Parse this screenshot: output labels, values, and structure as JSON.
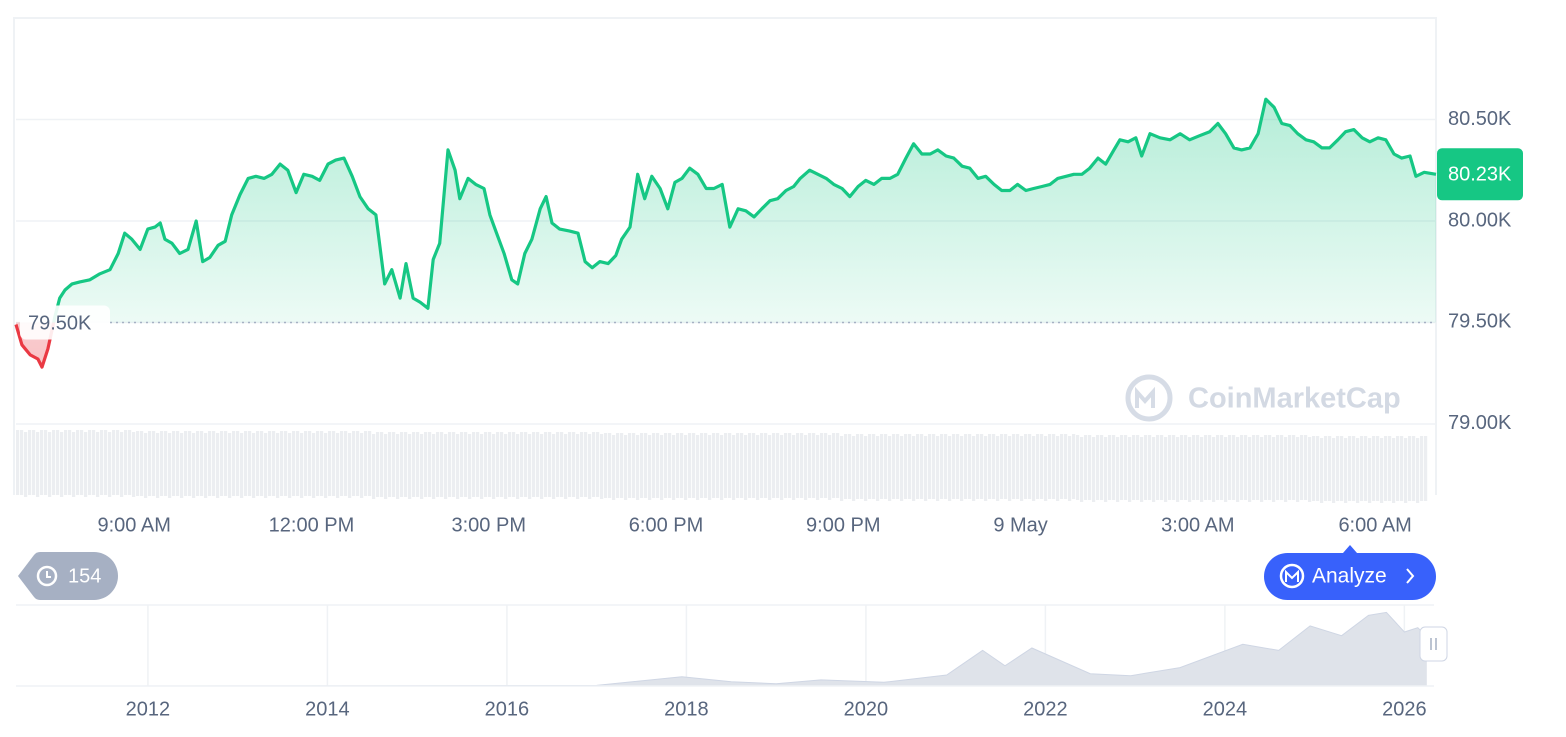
{
  "chart_data": [
    {
      "type": "line",
      "color": "#16c784",
      "down_color": "#ea3943",
      "grid": true,
      "baseline": {
        "value": 79500,
        "label": "79.50K"
      },
      "current_price": {
        "value": 80230,
        "label": "80.23K"
      },
      "xlim": [
        7,
        31.03
      ],
      "xticks": [
        {
          "value": 9,
          "label": "9:00 AM"
        },
        {
          "value": 12,
          "label": "12:00 PM"
        },
        {
          "value": 15,
          "label": "3:00 PM"
        },
        {
          "value": 18,
          "label": "6:00 PM"
        },
        {
          "value": 21,
          "label": "9:00 PM"
        },
        {
          "value": 24,
          "label": "9 May"
        },
        {
          "value": 27,
          "label": "3:00 AM"
        },
        {
          "value": 30,
          "label": "6:00 AM"
        }
      ],
      "ylim": [
        78650,
        81000
      ],
      "yticks": [
        {
          "value": 79000,
          "label": "79.00K"
        },
        {
          "value": 79500,
          "label": "79.50K"
        },
        {
          "value": 80000,
          "label": "80.00K"
        },
        {
          "value": 80500,
          "label": "80.50K"
        }
      ],
      "x": [
        7.0,
        7.1,
        7.24,
        7.37,
        7.44,
        7.54,
        7.66,
        7.74,
        7.83,
        7.95,
        8.08,
        8.25,
        8.42,
        8.59,
        8.73,
        8.84,
        8.96,
        9.1,
        9.23,
        9.35,
        9.44,
        9.52,
        9.64,
        9.77,
        9.91,
        10.05,
        10.16,
        10.28,
        10.42,
        10.54,
        10.65,
        10.79,
        10.93,
        11.06,
        11.2,
        11.33,
        11.47,
        11.6,
        11.74,
        11.87,
        12.01,
        12.14,
        12.28,
        12.41,
        12.55,
        12.69,
        12.82,
        12.96,
        13.09,
        13.24,
        13.36,
        13.5,
        13.6,
        13.72,
        13.84,
        13.97,
        14.06,
        14.17,
        14.31,
        14.43,
        14.51,
        14.65,
        14.78,
        14.92,
        15.02,
        15.12,
        15.26,
        15.39,
        15.49,
        15.61,
        15.73,
        15.87,
        15.97,
        16.07,
        16.2,
        16.37,
        16.51,
        16.63,
        16.75,
        16.88,
        17.02,
        17.15,
        17.25,
        17.39,
        17.52,
        17.64,
        17.76,
        17.9,
        18.03,
        18.15,
        18.27,
        18.4,
        18.54,
        18.68,
        18.81,
        18.95,
        19.08,
        19.22,
        19.35,
        19.49,
        19.62,
        19.76,
        19.89,
        20.03,
        20.16,
        20.27,
        20.43,
        20.57,
        20.71,
        20.84,
        20.98,
        21.11,
        21.25,
        21.38,
        21.52,
        21.65,
        21.79,
        21.92,
        22.06,
        22.19,
        22.33,
        22.47,
        22.6,
        22.74,
        22.87,
        23.01,
        23.14,
        23.28,
        23.41,
        23.55,
        23.68,
        23.82,
        23.95,
        24.09,
        24.22,
        24.36,
        24.5,
        24.63,
        24.77,
        24.9,
        25.04,
        25.17,
        25.31,
        25.44,
        25.58,
        25.68,
        25.82,
        25.95,
        26.05,
        26.19,
        26.36,
        26.53,
        26.7,
        26.86,
        27.03,
        27.2,
        27.34,
        27.47,
        27.61,
        27.74,
        27.88,
        28.02,
        28.15,
        28.29,
        28.42,
        28.56,
        28.69,
        28.83,
        28.96,
        29.1,
        29.23,
        29.37,
        29.5,
        29.64,
        29.78,
        29.91,
        30.05,
        30.18,
        30.32,
        30.45,
        30.59,
        30.69,
        30.83,
        31.03
      ],
      "values": [
        79490,
        79390,
        79340,
        79320,
        79280,
        79370,
        79530,
        79620,
        79660,
        79690,
        79700,
        79710,
        79740,
        79760,
        79840,
        79940,
        79910,
        79860,
        79960,
        79970,
        79990,
        79910,
        79890,
        79840,
        79860,
        80000,
        79800,
        79820,
        79880,
        79900,
        80030,
        80130,
        80210,
        80220,
        80210,
        80230,
        80280,
        80250,
        80140,
        80230,
        80220,
        80200,
        80280,
        80300,
        80310,
        80220,
        80120,
        80060,
        80030,
        79690,
        79760,
        79620,
        79790,
        79620,
        79600,
        79570,
        79810,
        79890,
        80350,
        80250,
        80110,
        80210,
        80180,
        80160,
        80030,
        79950,
        79840,
        79710,
        79690,
        79840,
        79910,
        80060,
        80120,
        79990,
        79960,
        79950,
        79940,
        79800,
        79770,
        79800,
        79790,
        79830,
        79910,
        79970,
        80230,
        80110,
        80220,
        80160,
        80060,
        80190,
        80210,
        80260,
        80230,
        80160,
        80160,
        80180,
        79970,
        80060,
        80050,
        80020,
        80060,
        80100,
        80110,
        80150,
        80170,
        80210,
        80250,
        80230,
        80210,
        80180,
        80160,
        80120,
        80170,
        80200,
        80180,
        80210,
        80210,
        80230,
        80310,
        80380,
        80330,
        80330,
        80350,
        80320,
        80310,
        80270,
        80260,
        80210,
        80220,
        80180,
        80150,
        80150,
        80180,
        80150,
        80160,
        80170,
        80180,
        80210,
        80220,
        80230,
        80230,
        80260,
        80310,
        80280,
        80350,
        80400,
        80390,
        80410,
        80320,
        80430,
        80410,
        80400,
        80430,
        80400,
        80420,
        80440,
        80480,
        80430,
        80360,
        80350,
        80360,
        80430,
        80600,
        80560,
        80480,
        80470,
        80430,
        80400,
        80390,
        80360,
        80360,
        80400,
        80440,
        80450,
        80410,
        80390,
        80410,
        80400,
        80330,
        80310,
        80320,
        80220,
        80240,
        80230
      ]
    },
    {
      "type": "area",
      "color": "#dfe3ea",
      "xlim": [
        2010.53,
        2026.33
      ],
      "ylim": [
        0,
        132000
      ],
      "xticks": [
        2012,
        2014,
        2016,
        2018,
        2020,
        2022,
        2024,
        2026
      ],
      "x": [
        2010.6,
        2013.0,
        2017.0,
        2017.95,
        2018.5,
        2019.0,
        2019.5,
        2020.2,
        2020.9,
        2021.3,
        2021.55,
        2021.85,
        2022.5,
        2022.95,
        2023.5,
        2024.2,
        2024.6,
        2024.95,
        2025.3,
        2025.6,
        2025.8,
        2026.0,
        2026.15,
        2026.25
      ],
      "values": [
        0,
        100,
        1000,
        15000,
        7000,
        3700,
        10000,
        6000,
        18000,
        58000,
        33000,
        62000,
        20000,
        16800,
        30000,
        68000,
        58000,
        98000,
        82000,
        115000,
        120000,
        88000,
        95000,
        80000
      ]
    }
  ],
  "ui": {
    "history_count": 154,
    "analyze_button": "Analyze",
    "watermark": "CoinMarketCap"
  }
}
